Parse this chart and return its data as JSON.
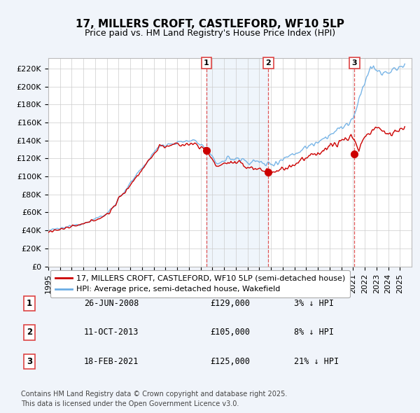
{
  "title": "17, MILLERS CROFT, CASTLEFORD, WF10 5LP",
  "subtitle": "Price paid vs. HM Land Registry's House Price Index (HPI)",
  "ylabel_ticks": [
    "£0",
    "£20K",
    "£40K",
    "£60K",
    "£80K",
    "£100K",
    "£120K",
    "£140K",
    "£160K",
    "£180K",
    "£200K",
    "£220K"
  ],
  "ytick_values": [
    0,
    20000,
    40000,
    60000,
    80000,
    100000,
    120000,
    140000,
    160000,
    180000,
    200000,
    220000
  ],
  "ylim": [
    0,
    232000
  ],
  "xlim_start": 1995.0,
  "xlim_end": 2026.0,
  "hpi_color": "#6aade4",
  "price_color": "#cc0000",
  "dashed_line_color": "#dd4444",
  "shade_color": "#ddeeff",
  "background_color": "#f0f4fa",
  "plot_bg_color": "#ffffff",
  "legend_entries": [
    "17, MILLERS CROFT, CASTLEFORD, WF10 5LP (semi-detached house)",
    "HPI: Average price, semi-detached house, Wakefield"
  ],
  "sales": [
    {
      "label": "1",
      "date_str": "26-JUN-2008",
      "date_x": 2008.49,
      "price": 129000,
      "pct": "3%",
      "direction": "↓"
    },
    {
      "label": "2",
      "date_str": "11-OCT-2013",
      "date_x": 2013.78,
      "price": 105000,
      "pct": "8%",
      "direction": "↓"
    },
    {
      "label": "3",
      "date_str": "18-FEB-2021",
      "date_x": 2021.13,
      "price": 125000,
      "pct": "21%",
      "direction": "↓"
    }
  ],
  "footer": "Contains HM Land Registry data © Crown copyright and database right 2025.\nThis data is licensed under the Open Government Licence v3.0.",
  "title_fontsize": 11,
  "subtitle_fontsize": 9,
  "tick_fontsize": 8,
  "legend_fontsize": 8,
  "footer_fontsize": 7
}
